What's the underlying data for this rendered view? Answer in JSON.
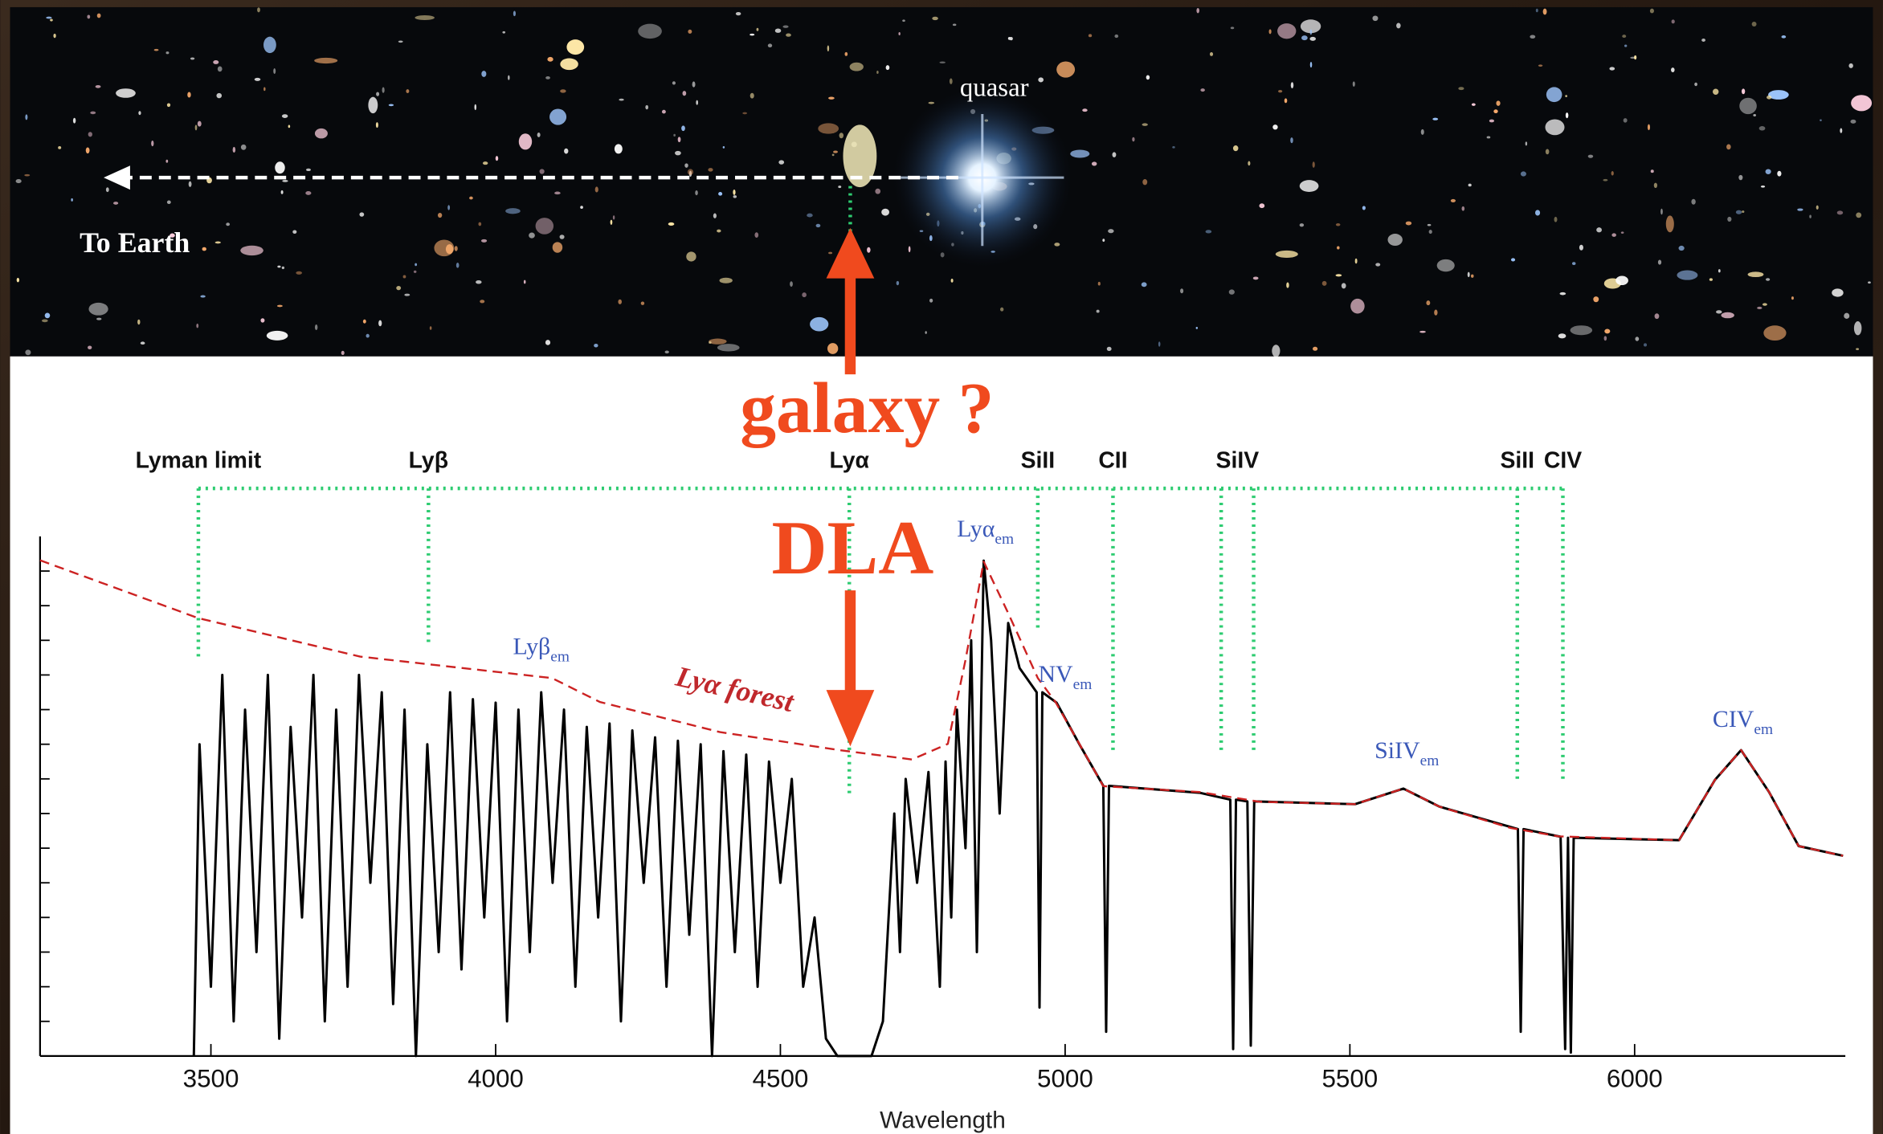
{
  "chart_data": {
    "type": "line",
    "photo_labels": {
      "quasar": "quasar",
      "earth": "To Earth"
    },
    "annotations": {
      "galaxy": "galaxy ?",
      "dla": "DLA",
      "forest": "Lyα forest"
    },
    "x_label": "Wavelength",
    "xlim": [
      3200,
      6370
    ],
    "ylim": [
      0,
      15
    ],
    "xticks": [
      3500,
      4000,
      4500,
      5000,
      5500,
      6000
    ],
    "yticks": [
      1,
      2,
      3,
      4,
      5,
      6,
      7,
      8,
      9,
      10,
      11,
      12,
      13,
      14
    ],
    "series": [
      {
        "color": "#000000",
        "style": "solid",
        "x": [
          3470,
          3480,
          3500,
          3520,
          3540,
          3560,
          3580,
          3600,
          3620,
          3640,
          3660,
          3680,
          3700,
          3720,
          3740,
          3760,
          3780,
          3800,
          3820,
          3840,
          3860,
          3880,
          3900,
          3920,
          3940,
          3960,
          3980,
          4000,
          4020,
          4040,
          4060,
          4080,
          4100,
          4120,
          4140,
          4160,
          4180,
          4200,
          4220,
          4240,
          4260,
          4280,
          4300,
          4320,
          4340,
          4360,
          4380,
          4400,
          4420,
          4440,
          4460,
          4480,
          4500,
          4520,
          4540,
          4560,
          4580,
          4600,
          4620,
          4660,
          4680,
          4700,
          4710,
          4720,
          4740,
          4760,
          4780,
          4790,
          4800,
          4810,
          4825,
          4835,
          4845,
          4857,
          4870,
          4885,
          4900,
          4920,
          4950,
          4955,
          4960,
          4985,
          5025,
          5067,
          5072,
          5077,
          5236,
          5290,
          5295,
          5300,
          5320,
          5326,
          5332,
          5509,
          5594,
          5657,
          5795,
          5800,
          5805,
          5870,
          5878,
          5883,
          5888,
          5893,
          6078,
          6141,
          6187,
          6236,
          6288,
          6366
        ],
        "values": [
          0,
          9,
          2,
          11,
          1,
          10,
          3,
          11,
          0.5,
          9.5,
          4,
          11,
          1,
          10,
          2,
          11,
          5,
          10.5,
          1.5,
          10,
          0,
          9,
          3,
          10.5,
          2.5,
          10.3,
          4,
          10.2,
          1,
          10,
          3,
          10.5,
          5,
          10,
          2,
          9.5,
          4,
          9.6,
          1,
          9.4,
          5,
          9.2,
          2,
          9.1,
          3.5,
          9,
          0,
          8.8,
          3,
          8.7,
          2,
          8.5,
          5,
          8,
          2,
          4,
          0.5,
          0,
          0,
          0,
          1,
          7,
          3,
          8,
          5,
          8.2,
          2,
          8.5,
          4,
          10,
          6,
          12,
          3,
          14.3,
          12,
          7,
          12.5,
          11.2,
          10.5,
          1.4,
          10.5,
          10.2,
          9,
          7.8,
          0.7,
          7.8,
          7.6,
          7.4,
          0.2,
          7.4,
          7.35,
          0.3,
          7.35,
          7.27,
          7.72,
          7.2,
          6.55,
          0.7,
          6.55,
          6.33,
          0.2,
          6.3,
          0.1,
          6.3,
          6.23,
          7.97,
          8.83,
          7.62,
          6.06,
          5.78
        ]
      },
      {
        "color": "#cc2222",
        "style": "dashed",
        "x": [
          3200,
          3478,
          3762,
          4099,
          4183,
          4394,
          4604,
          4731,
          4794,
          4825,
          4857,
          4899,
          4952,
          4983,
          5025,
          5067,
          5236,
          5341,
          5509,
          5594,
          5657,
          5783,
          5867,
          6078,
          6141,
          6187,
          6236,
          6288,
          6366
        ],
        "values": [
          14.31,
          12.64,
          11.53,
          10.91,
          10.22,
          9.35,
          8.83,
          8.56,
          9.01,
          11.43,
          14.27,
          12.82,
          10.91,
          10.22,
          9.01,
          7.79,
          7.62,
          7.34,
          7.27,
          7.72,
          7.2,
          6.58,
          6.34,
          6.23,
          7.97,
          8.83,
          7.62,
          6.06,
          5.78
        ]
      }
    ],
    "line_markers": [
      {
        "label": "Lyman limit",
        "x": [
          3478
        ],
        "y_end": 11.5
      },
      {
        "label": "Lyβ",
        "x": [
          3882
        ],
        "y_end": 11.85
      },
      {
        "label": "Lyα",
        "x": [
          4621
        ],
        "y_end": 7.45
      },
      {
        "label": "SiII",
        "x": [
          4952
        ],
        "y_end": 12.3
      },
      {
        "label": "CII",
        "x": [
          5084
        ],
        "y_end": 8.73
      },
      {
        "label": "SiIV",
        "x": [
          5274,
          5331
        ],
        "y_end": 8.73
      },
      {
        "label": "SiII",
        "x": [
          5794
        ],
        "y_end": 7.9
      },
      {
        "label": "CIV",
        "x": [
          5874
        ],
        "y_end": 7.9
      }
    ],
    "emission_labels": [
      {
        "text": "Lyβ",
        "sub": "em",
        "x": 4080,
        "y": 11.6
      },
      {
        "text": "Lyα",
        "sub": "em",
        "x": 4860,
        "y": 15.0
      },
      {
        "text": "NV",
        "sub": "em",
        "x": 5000,
        "y": 10.8
      },
      {
        "text": "SiIV",
        "sub": "em",
        "x": 5600,
        "y": 8.6
      },
      {
        "text": "CIV",
        "sub": "em",
        "x": 6190,
        "y": 9.5
      }
    ]
  }
}
